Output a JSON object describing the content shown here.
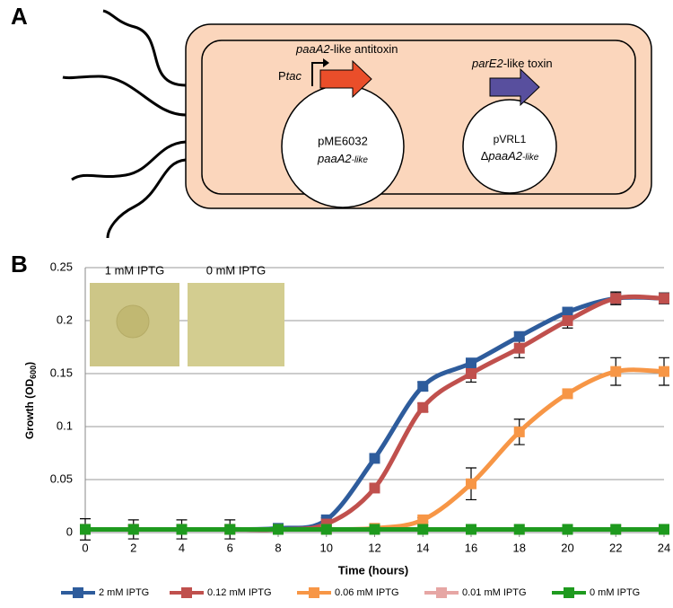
{
  "panel_labels": [
    "A",
    "B"
  ],
  "diagram": {
    "antitoxin_label": [
      "paaA2",
      "-like antitoxin"
    ],
    "promoter": [
      "P",
      "tac"
    ],
    "toxin_label": [
      "parE2",
      "-like toxin"
    ],
    "plasmid_1": {
      "name": "pME6032",
      "insert": [
        "paaA2",
        "-like"
      ]
    },
    "plasmid_2": {
      "name": "pVRL1",
      "insert": [
        "Δ",
        "paaA2",
        "-like"
      ]
    }
  },
  "insets": [
    "1 mM IPTG",
    "0 mM IPTG"
  ],
  "chart_data": {
    "type": "line",
    "xlabel": "Time (hours)",
    "ylabel": [
      "Growth (OD",
      "600",
      ")"
    ],
    "x": [
      0,
      2,
      4,
      6,
      8,
      10,
      12,
      14,
      16,
      18,
      20,
      22,
      24
    ],
    "xlim": [
      0,
      24
    ],
    "xticks": [
      0,
      2,
      4,
      6,
      8,
      10,
      12,
      14,
      16,
      18,
      20,
      22,
      24
    ],
    "ylim": [
      0,
      0.25
    ],
    "yticks": [
      0,
      0.05,
      0.1,
      0.15,
      0.2,
      0.25
    ],
    "grid": true,
    "legend": "bottom",
    "series": [
      {
        "name": "2 mM IPTG",
        "color": "#2e5c9c",
        "values": [
          0.003,
          0.003,
          0.003,
          0.003,
          0.004,
          0.012,
          0.07,
          0.138,
          0.16,
          0.185,
          0.208,
          0.221,
          0.221
        ],
        "errors": [
          0,
          0,
          0,
          0,
          0,
          0.002,
          0.003,
          0.004,
          0.004,
          0.004,
          0.004,
          0.006,
          0.005
        ]
      },
      {
        "name": "0.12 mM IPTG",
        "color": "#c0504d",
        "values": [
          0.003,
          0.003,
          0.003,
          0.003,
          0.003,
          0.008,
          0.042,
          0.118,
          0.15,
          0.174,
          0.2,
          0.221,
          0.221
        ],
        "errors": [
          0,
          0,
          0,
          0,
          0,
          0.002,
          0.003,
          0.004,
          0.008,
          0.009,
          0.007,
          0.005,
          0.005
        ]
      },
      {
        "name": "0.06 mM IPTG",
        "color": "#f79646",
        "values": [
          0.003,
          0.003,
          0.003,
          0.003,
          0.003,
          0.003,
          0.004,
          0.012,
          0.046,
          0.095,
          0.131,
          0.152,
          0.152
        ],
        "errors": [
          0,
          0,
          0,
          0,
          0,
          0,
          0.001,
          0.002,
          0.015,
          0.012,
          0.004,
          0.013,
          0.013
        ]
      },
      {
        "name": "0.01 mM IPTG",
        "color": "#e6a6a4",
        "values": [
          0.003,
          0.003,
          0.003,
          0.003,
          0.003,
          0.003,
          0.003,
          0.003,
          0.003,
          0.003,
          0.003,
          0.003,
          0.003
        ],
        "errors": [
          0,
          0,
          0,
          0,
          0,
          0,
          0,
          0,
          0,
          0,
          0,
          0,
          0
        ]
      },
      {
        "name": "0 mM IPTG",
        "color": "#1e9a1e",
        "values": [
          0.003,
          0.003,
          0.003,
          0.003,
          0.003,
          0.003,
          0.003,
          0.003,
          0.003,
          0.003,
          0.003,
          0.003,
          0.003
        ],
        "errors": [
          0.01,
          0.009,
          0.009,
          0.009,
          0,
          0,
          0,
          0,
          0,
          0,
          0,
          0,
          0
        ]
      }
    ]
  }
}
